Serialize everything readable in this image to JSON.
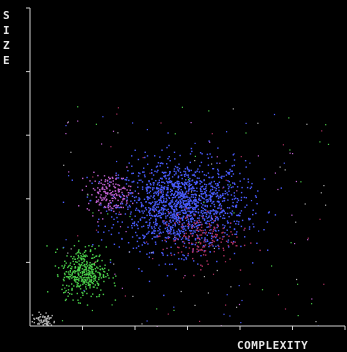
{
  "chart_data": {
    "type": "scatter",
    "title": "",
    "xlabel": "COMPLEXITY",
    "ylabel": "SIZE",
    "xlim": [
      0,
      100
    ],
    "ylim": [
      0,
      100
    ],
    "x_tick_count": 6,
    "y_tick_count": 5,
    "grid": false,
    "legend": "none",
    "background": "#000000",
    "axis_color": "#d0d0d0",
    "series": [
      {
        "color": "#4a5cff",
        "center": [
          48,
          38
        ],
        "spread": [
          10,
          7
        ],
        "count": 1500
      },
      {
        "color": "#4ad04a",
        "center": [
          17,
          17
        ],
        "spread": [
          3.5,
          4
        ],
        "count": 380
      },
      {
        "color": "#c060d0",
        "center": [
          25,
          42
        ],
        "spread": [
          3.5,
          3
        ],
        "count": 170
      },
      {
        "color": "#b03060",
        "center": [
          53,
          28
        ],
        "spread": [
          6,
          4
        ],
        "count": 160
      },
      {
        "color": "#b0b0b0",
        "center": [
          4,
          2
        ],
        "spread": [
          2,
          1.2
        ],
        "count": 70
      }
    ]
  }
}
